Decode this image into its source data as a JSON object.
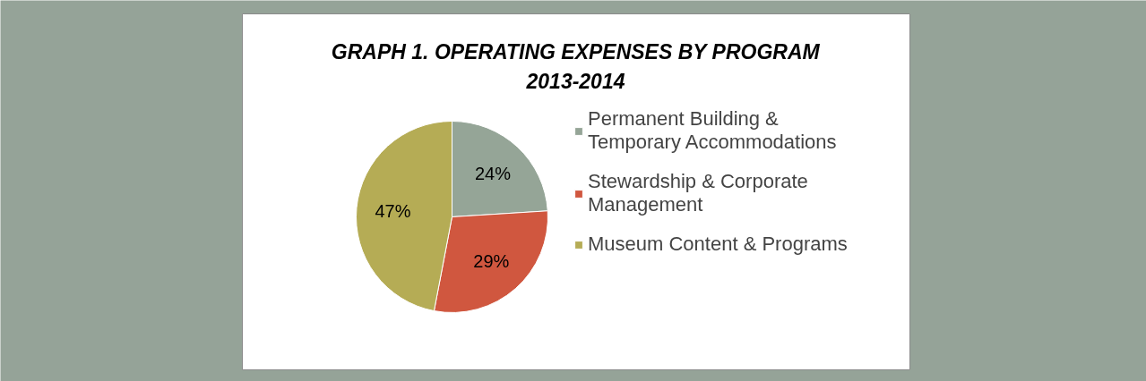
{
  "chart_data": {
    "type": "pie",
    "title": "GRAPH 1. OPERATING EXPENSES BY PROGRAM 2013-2014",
    "categories": [
      "Permanent Building & Temporary Accommodations",
      "Stewardship & Corporate Management",
      "Museum Content & Programs"
    ],
    "values": [
      24,
      29,
      47
    ],
    "value_labels": [
      "24%",
      "29%",
      "47%"
    ],
    "colors": [
      "#95a597",
      "#d0573f",
      "#b5ac55"
    ],
    "legend": "right"
  }
}
